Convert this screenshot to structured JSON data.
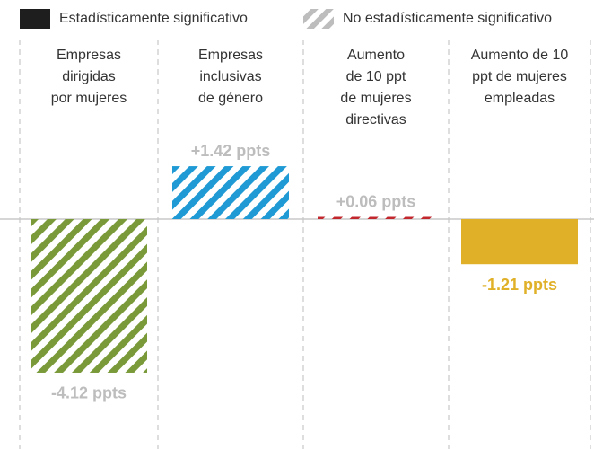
{
  "chart_data": {
    "type": "bar",
    "legend": [
      {
        "name": "Estadísticamente significativo",
        "color": "#1e1e1e"
      },
      {
        "name": "No estadísticamente significativo",
        "color": "#bdbdbd"
      }
    ],
    "categories": [
      "Empresas\ndirigidas\npor mujeres",
      "Empresas\ninclusivas\nde género",
      "Aumento\nde 10 ppt\nde mujeres\ndirectivas",
      "Aumento de 10\nppt de mujeres\nempleadas"
    ],
    "values": [
      -4.12,
      1.42,
      0.06,
      -1.21
    ],
    "value_labels": [
      "-4.12 ppts",
      "+1.42 ppts",
      "+0.06 ppts",
      "-1.21 ppts"
    ],
    "colors": [
      "#7a9a3a",
      "#1f9ad4",
      "#c1272d",
      "#e0b128"
    ],
    "significant": [
      false,
      false,
      false,
      true
    ]
  }
}
